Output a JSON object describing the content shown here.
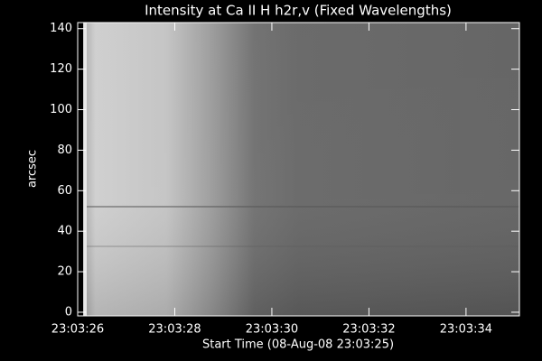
{
  "chart_data": {
    "type": "image",
    "title": "Intensity at Ca II H h2r,v (Fixed Wavelengths)",
    "x_label": "Start Time (08-Aug-08 23:03:25)",
    "y_label": "arcsec",
    "xlim": [
      1,
      10.1
    ],
    "xticks": [
      {
        "value": 1,
        "label": "23:03:26"
      },
      {
        "value": 3,
        "label": "23:03:28"
      },
      {
        "value": 5,
        "label": "23:03:30"
      },
      {
        "value": 7,
        "label": "23:03:32"
      },
      {
        "value": 9,
        "label": "23:03:34"
      }
    ],
    "ylim": [
      -1.8,
      143
    ],
    "yticks": [
      0,
      20,
      40,
      60,
      80,
      100,
      120,
      140
    ]
  }
}
